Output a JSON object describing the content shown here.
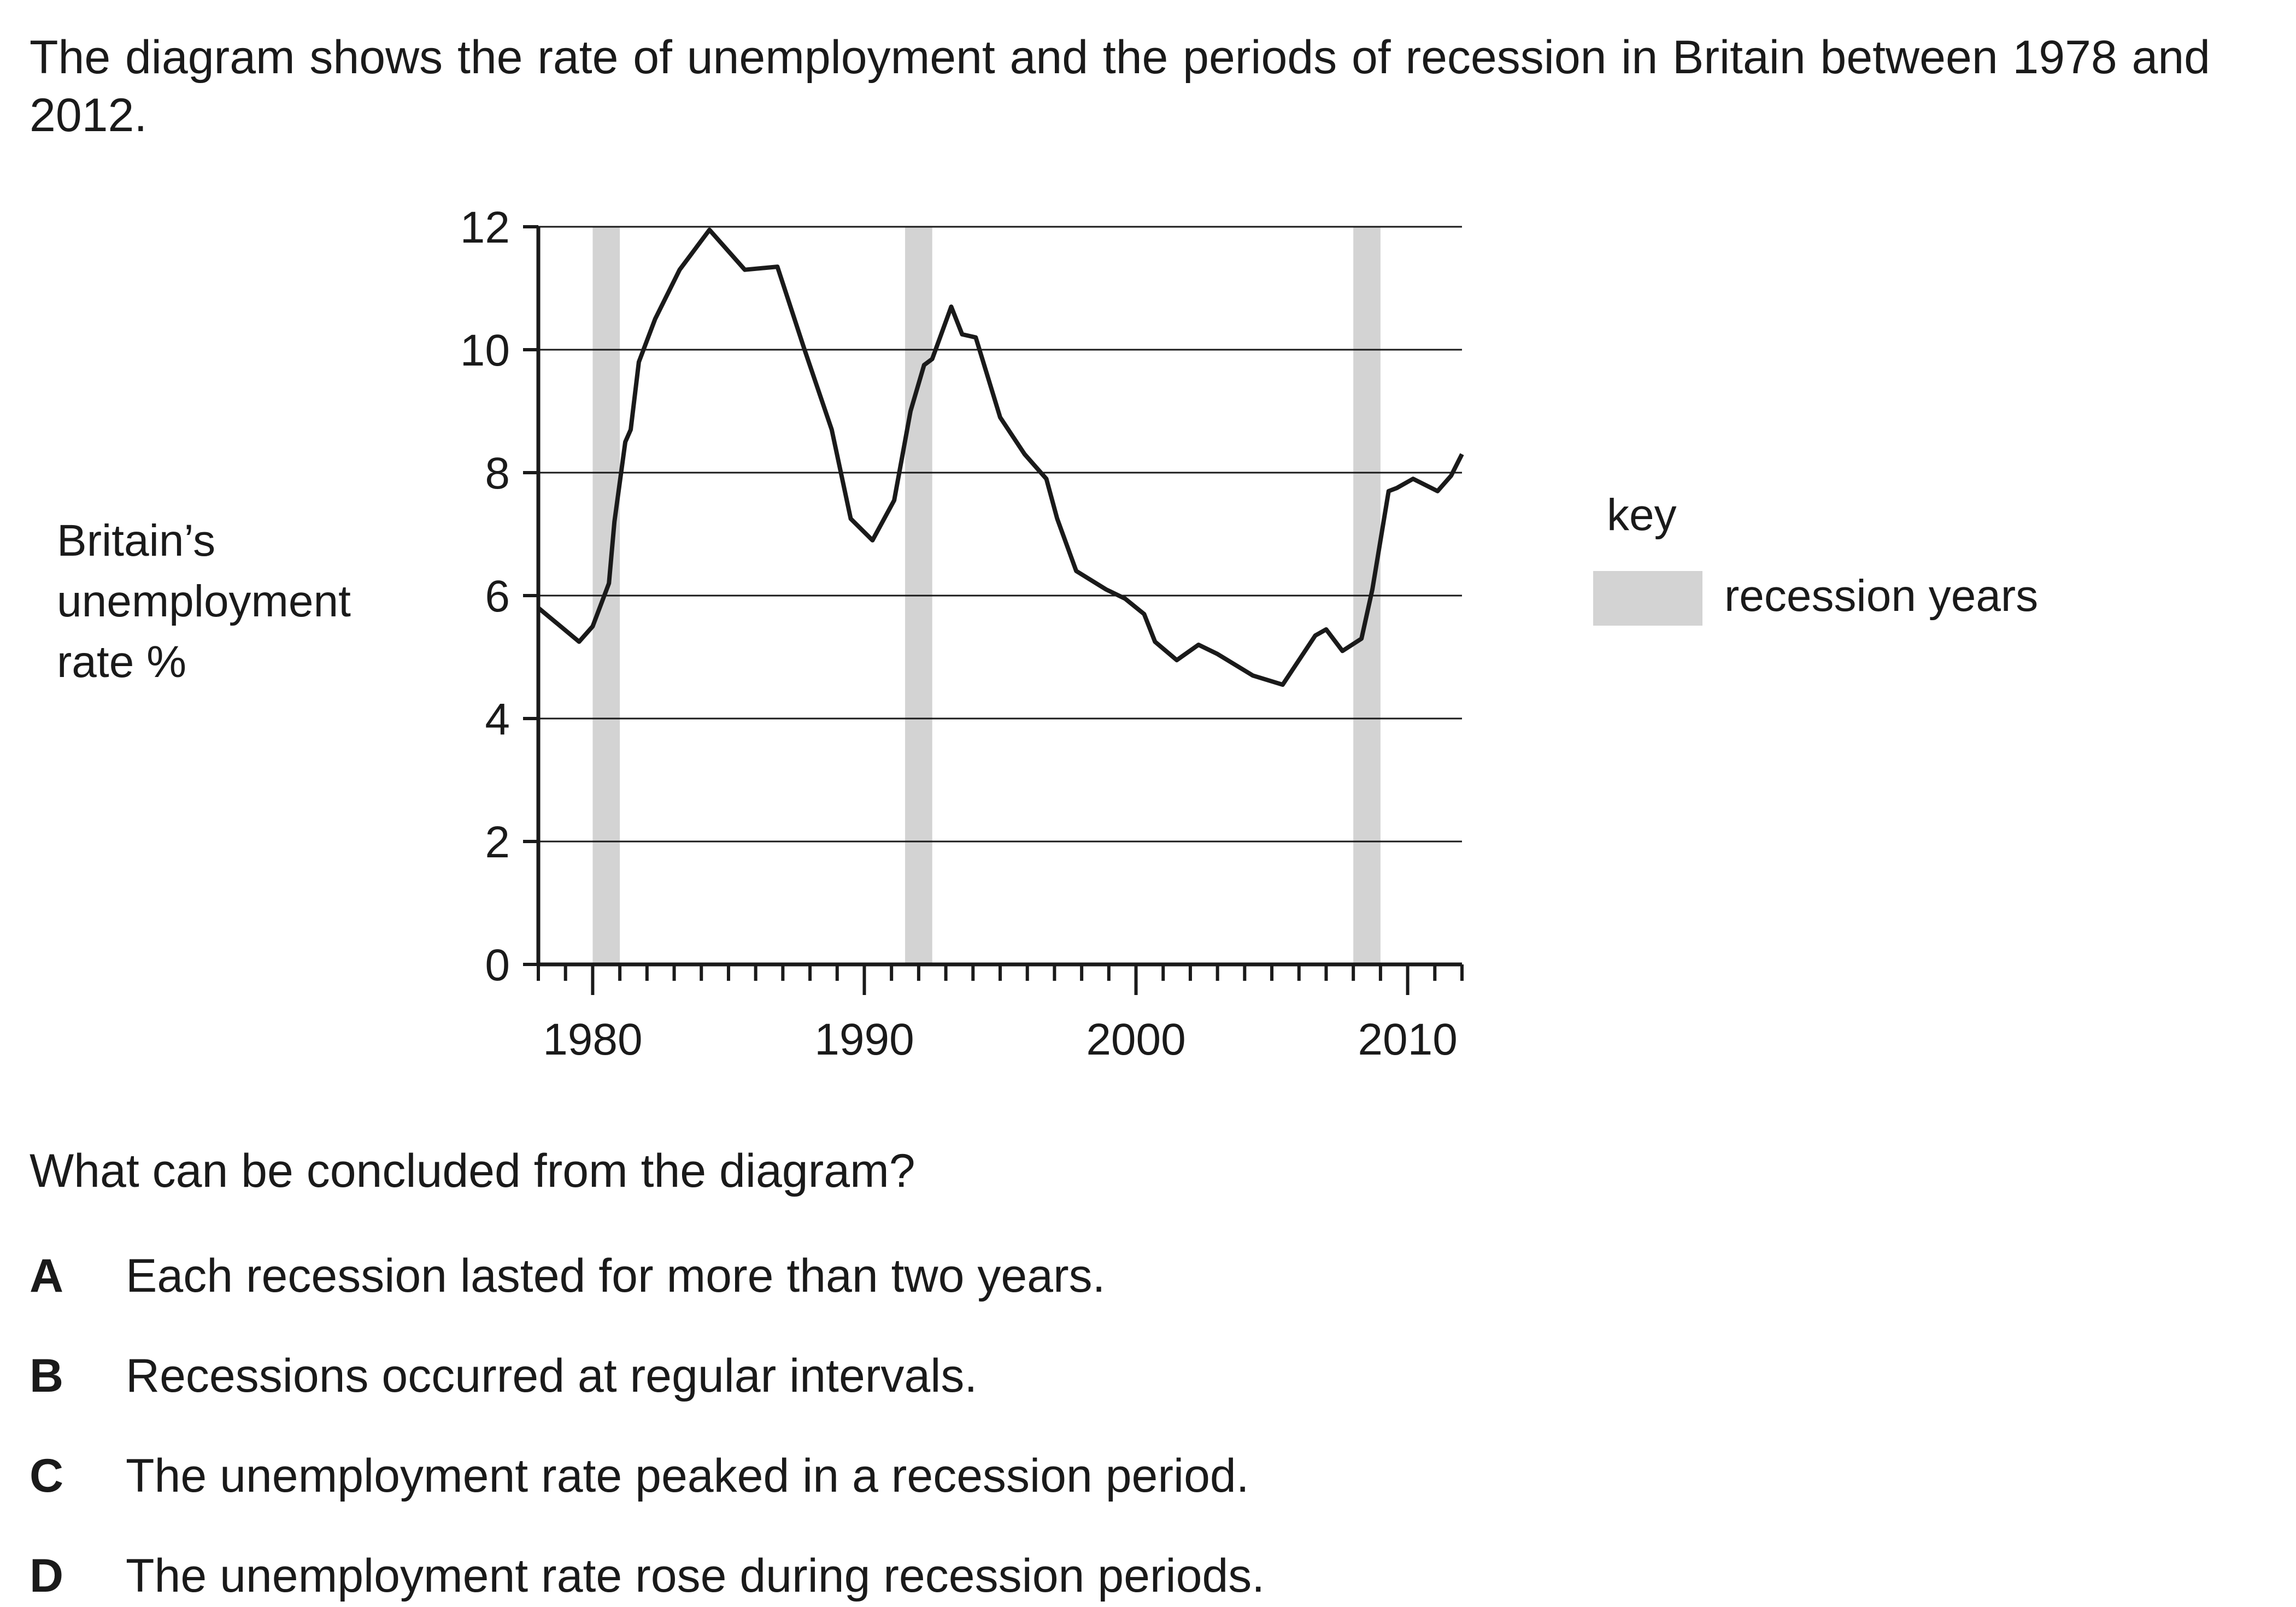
{
  "intro_text": "The diagram shows the rate of unemployment and the periods of recession in Britain between 1978 and 2012.",
  "question": "What can be concluded from the diagram?",
  "options": [
    {
      "letter": "A",
      "text": "Each recession lasted for more than two years."
    },
    {
      "letter": "B",
      "text": "Recessions occurred at regular intervals."
    },
    {
      "letter": "C",
      "text": "The unemployment rate peaked in a recession period."
    },
    {
      "letter": "D",
      "text": "The unemployment rate rose during recession periods."
    }
  ],
  "colors": {
    "line": "#1a1a1a",
    "recession_band": "#d3d3d3",
    "gridline": "#1a1a1a"
  },
  "chart_data": {
    "type": "line",
    "ylabel": "Britain’s unemployment rate %",
    "ylabel_lines": [
      "Britain’s",
      "unemployment",
      "rate %"
    ],
    "xlabel": "",
    "title": "",
    "xlim": [
      1978,
      2012
    ],
    "ylim": [
      0,
      12
    ],
    "xticks": [
      1980,
      1990,
      2000,
      2010
    ],
    "yticks": [
      0,
      2,
      4,
      6,
      8,
      10,
      12
    ],
    "grid": "horizontal",
    "legend": {
      "placement": "right",
      "heading": "key",
      "entries": [
        {
          "label": "recession years",
          "color": "#d3d3d3"
        }
      ]
    },
    "recessions": [
      {
        "start": 1980,
        "end": 1981
      },
      {
        "start": 1991.5,
        "end": 1992.5
      },
      {
        "start": 2008,
        "end": 2009
      }
    ],
    "series": [
      {
        "x": [
          1978,
          1979.5,
          1980,
          1980.6,
          1980.8,
          1981.2,
          1981.4,
          1981.7,
          1982.3,
          1983.2,
          1984.3,
          1985.6,
          1986.8,
          1987.8,
          1988.8,
          1989.5,
          1990.3,
          1991.1,
          1991.7,
          1992.2,
          1992.5,
          1993.2,
          1993.6,
          1994.1,
          1995,
          1995.9,
          1996.7,
          1997.1,
          1997.8,
          1998.9,
          1999.6,
          2000.3,
          2000.7,
          2001.5,
          2002.3,
          2003,
          2004.3,
          2005.4,
          2006.6,
          2007,
          2007.6,
          2008.3,
          2008.7,
          2009.3,
          2009.6,
          2010.2,
          2011.1,
          2011.6,
          2012
        ],
        "y": [
          5.8,
          5.25,
          5.5,
          6.2,
          7.2,
          8.5,
          8.7,
          9.8,
          10.5,
          11.3,
          11.95,
          11.3,
          11.35,
          10.0,
          8.7,
          7.25,
          6.9,
          7.55,
          9.0,
          9.75,
          9.85,
          10.7,
          10.25,
          10.2,
          8.9,
          8.3,
          7.9,
          7.25,
          6.4,
          6.1,
          5.95,
          5.7,
          5.25,
          4.95,
          5.2,
          5.05,
          4.7,
          4.55,
          5.35,
          5.45,
          5.1,
          5.3,
          6.1,
          7.7,
          7.75,
          7.9,
          7.7,
          7.95,
          8.3
        ]
      }
    ]
  }
}
